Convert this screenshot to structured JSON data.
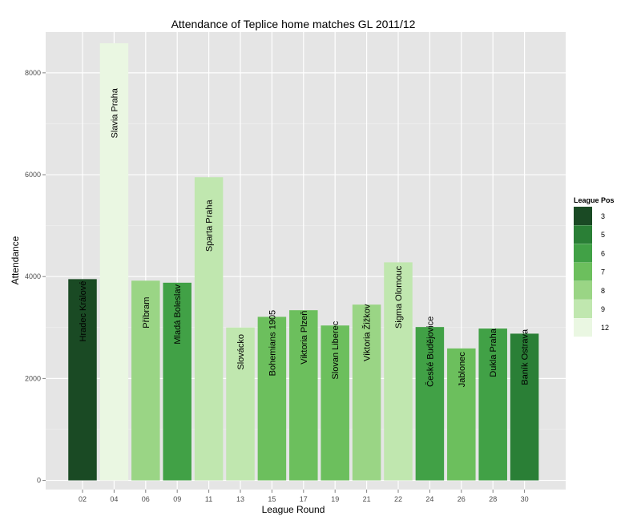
{
  "chart_data": {
    "type": "bar",
    "title": "Attendance of Teplice home matches GL 2011/12",
    "xlabel": "League Round",
    "ylabel": "Attendance",
    "ylim": [
      -180,
      8800
    ],
    "yticks": [
      0,
      2000,
      4000,
      6000,
      8000
    ],
    "grid": true,
    "legend_placement": "right",
    "legend": {
      "title": "League Pos",
      "entries": [
        {
          "label": "3",
          "color": "#1a4a24"
        },
        {
          "label": "5",
          "color": "#2a7f36"
        },
        {
          "label": "6",
          "color": "#41a146"
        },
        {
          "label": "7",
          "color": "#6cbf5d"
        },
        {
          "label": "8",
          "color": "#9ad585"
        },
        {
          "label": "9",
          "color": "#c0e7af"
        },
        {
          "label": "12",
          "color": "#eaf7e2"
        }
      ]
    },
    "categories": [
      "02",
      "04",
      "06",
      "09",
      "11",
      "13",
      "15",
      "17",
      "19",
      "21",
      "22",
      "24",
      "26",
      "28",
      "30"
    ],
    "values": [
      3950,
      8580,
      3920,
      3880,
      5950,
      3000,
      3210,
      3340,
      3040,
      3450,
      4280,
      3010,
      2590,
      2980,
      2880
    ],
    "opponents": [
      "Hradec Králové",
      "Slavia Praha",
      "Příbram",
      "Mladá Boleslav",
      "Sparta Praha",
      "Slovácko",
      "Bohemians 1905",
      "Viktoria Plzeň",
      "Slovan Liberec",
      "Viktoria Žižkov",
      "Sigma Olomouc",
      "České Budějovice",
      "Jablonec",
      "Dukla Praha",
      "Baník Ostrava"
    ],
    "league_pos": [
      "3",
      "12",
      "8",
      "6",
      "9",
      "9",
      "7",
      "7",
      "7",
      "8",
      "9",
      "6",
      "7",
      "6",
      "5"
    ]
  }
}
